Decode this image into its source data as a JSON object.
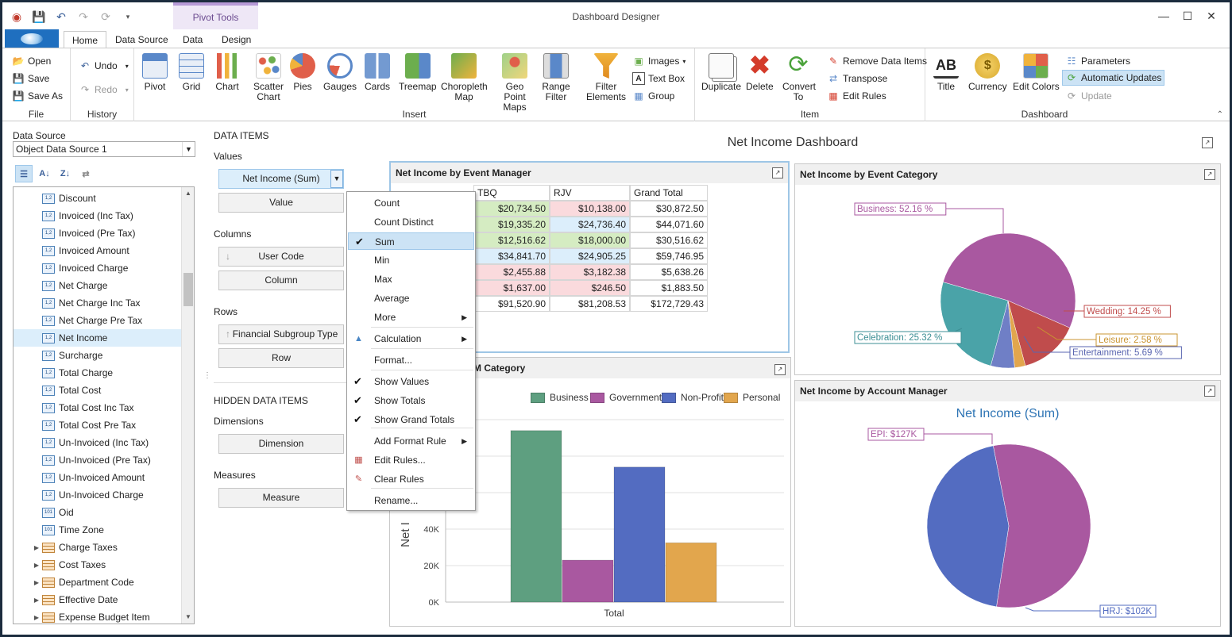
{
  "window": {
    "title": "Dashboard Designer",
    "context_group": "Pivot Tools"
  },
  "tabs": [
    "Home",
    "Data Source",
    "Data",
    "Design"
  ],
  "ribbon": {
    "file": {
      "label": "File",
      "open": "Open",
      "save": "Save",
      "save_as": "Save As"
    },
    "history": {
      "label": "History",
      "undo": "Undo",
      "redo": "Redo"
    },
    "insert": {
      "label": "Insert",
      "items": [
        "Pivot",
        "Grid",
        "Chart",
        "Scatter Chart",
        "Pies",
        "Gauges",
        "Cards",
        "Treemap",
        "Choropleth Map",
        "Geo Point Maps",
        "Range Filter",
        "Filter Elements"
      ],
      "images": "Images",
      "text_box": "Text Box",
      "group": "Group"
    },
    "item": {
      "label": "Item",
      "duplicate": "Duplicate",
      "delete": "Delete",
      "convert_to": "Convert To",
      "remove_data_items": "Remove Data Items",
      "transpose": "Transpose",
      "edit_rules": "Edit Rules"
    },
    "dashboard": {
      "label": "Dashboard",
      "title": "Title",
      "currency": "Currency",
      "edit_colors": "Edit Colors",
      "parameters": "Parameters",
      "automatic_updates": "Automatic Updates",
      "update": "Update"
    }
  },
  "data_source": {
    "label": "Data Source",
    "selected": "Object Data Source 1",
    "fields": [
      {
        "name": "Discount",
        "type": "num"
      },
      {
        "name": "Invoiced (Inc Tax)",
        "type": "num"
      },
      {
        "name": "Invoiced (Pre Tax)",
        "type": "num"
      },
      {
        "name": "Invoiced Amount",
        "type": "num"
      },
      {
        "name": "Invoiced Charge",
        "type": "num"
      },
      {
        "name": "Net Charge",
        "type": "num"
      },
      {
        "name": "Net Charge Inc Tax",
        "type": "num"
      },
      {
        "name": "Net Charge Pre Tax",
        "type": "num"
      },
      {
        "name": "Net Income",
        "type": "num"
      },
      {
        "name": "Surcharge",
        "type": "num"
      },
      {
        "name": "Total Charge",
        "type": "num"
      },
      {
        "name": "Total Cost",
        "type": "num"
      },
      {
        "name": "Total Cost Inc Tax",
        "type": "num"
      },
      {
        "name": "Total Cost Pre Tax",
        "type": "num"
      },
      {
        "name": "Un-Invoiced (Inc Tax)",
        "type": "num"
      },
      {
        "name": "Un-Invoiced (Pre Tax)",
        "type": "num"
      },
      {
        "name": "Un-Invoiced Amount",
        "type": "num"
      },
      {
        "name": "Un-Invoiced Charge",
        "type": "num"
      },
      {
        "name": "Oid",
        "type": "int"
      },
      {
        "name": "Time Zone",
        "type": "int"
      },
      {
        "name": "Charge Taxes",
        "type": "table"
      },
      {
        "name": "Cost Taxes",
        "type": "table"
      },
      {
        "name": "Department Code",
        "type": "table"
      },
      {
        "name": "Effective Date",
        "type": "table"
      },
      {
        "name": "Expense Budget Item",
        "type": "table"
      }
    ],
    "selected_field": "Net Income"
  },
  "data_items": {
    "title": "DATA ITEMS",
    "values_label": "Values",
    "value_item": "Net Income (Sum)",
    "value_placeholder": "Value",
    "columns_label": "Columns",
    "column_item": "User Code",
    "column_placeholder": "Column",
    "rows_label": "Rows",
    "row_item": "Financial Subgroup Type",
    "row_placeholder": "Row",
    "hidden_title": "HIDDEN DATA ITEMS",
    "dimensions_label": "Dimensions",
    "dimension_placeholder": "Dimension",
    "measures_label": "Measures",
    "measure_placeholder": "Measure"
  },
  "context_menu": {
    "items": [
      "Count",
      "Count Distinct",
      "Sum",
      "Min",
      "Max",
      "Average",
      "More",
      "Calculation",
      "Format...",
      "Show Values",
      "Show Totals",
      "Show Grand Totals",
      "Add Format Rule",
      "Edit Rules...",
      "Clear Rules",
      "Rename..."
    ],
    "selected": "Sum"
  },
  "dashboard": {
    "title": "Net Income Dashboard",
    "pivot": {
      "title": "Net Income by Event Manager",
      "columns": [
        "TBQ",
        "RJV",
        "Grand Total"
      ],
      "rows": [
        [
          "$20,734.50",
          "$10,138.00",
          "$30,872.50"
        ],
        [
          "$19,335.20",
          "$24,736.40",
          "$44,071.60"
        ],
        [
          "$12,516.62",
          "$18,000.00",
          "$30,516.62"
        ],
        [
          "$34,841.70",
          "$24,905.25",
          "$59,746.95"
        ],
        [
          "$2,455.88",
          "$3,182.38",
          "$5,638.26"
        ],
        [
          "$1,637.00",
          "$246.50",
          "$1,883.50"
        ],
        [
          "$91,520.90",
          "$81,208.53",
          "$172,729.43"
        ]
      ],
      "cell_colors": [
        [
          "#d5ecc2",
          "#fadadd",
          ""
        ],
        [
          "#d5ecc2",
          "#dceefb",
          ""
        ],
        [
          "#d5ecc2",
          "#d5ecc2",
          ""
        ],
        [
          "#dceefb",
          "#dceefb",
          ""
        ],
        [
          "#fadadd",
          "#fadadd",
          ""
        ],
        [
          "#fadadd",
          "#fadadd",
          ""
        ],
        [
          "",
          "",
          ""
        ]
      ]
    },
    "bar": {
      "title_fragment": "M Category",
      "axis_title": "Net I",
      "x_label": "Total",
      "legend": [
        "Business",
        "Government",
        "Non-Profit",
        "Personal"
      ],
      "colors": {
        "Business": "#5e9f80",
        "Government": "#a958a0",
        "Non-Profit": "#536cc1",
        "Personal": "#e2a64d"
      }
    },
    "pie_category": {
      "title": "Net Income by Event Category",
      "labels": [
        "Business: 52.16 %",
        "Wedding: 14.25 %",
        "Leisure: 2.58 %",
        "Entertainment: 5.69 %",
        "Celebration: 25.32 %"
      ]
    },
    "pie_account": {
      "title": "Net Income by Account Manager",
      "chart_title": "Net Income (Sum)",
      "labels": [
        "EPI: $127K",
        "HRJ: $102K"
      ]
    }
  },
  "chart_data": [
    {
      "type": "bar",
      "categories": [
        "Total"
      ],
      "series": [
        {
          "name": "Business",
          "values": [
            94000
          ]
        },
        {
          "name": "Government",
          "values": [
            23000
          ]
        },
        {
          "name": "Non-Profit",
          "values": [
            74000
          ]
        },
        {
          "name": "Personal",
          "values": [
            32500
          ]
        }
      ],
      "yticks": [
        "0K",
        "20K",
        "40K"
      ],
      "ylim": [
        0,
        100000
      ],
      "grid": true,
      "legend_position": "top"
    },
    {
      "type": "pie",
      "title": "Net Income by Event Category",
      "categories": [
        "Business",
        "Wedding",
        "Leisure",
        "Entertainment",
        "Celebration"
      ],
      "values": [
        52.16,
        14.25,
        2.58,
        5.69,
        25.32
      ],
      "colors": [
        "#a958a0",
        "#c04c4c",
        "#e2a64d",
        "#6f7fc6",
        "#4aa3a8"
      ]
    },
    {
      "type": "pie",
      "title": "Net Income (Sum)",
      "categories": [
        "EPI",
        "HRJ"
      ],
      "values": [
        127,
        102
      ],
      "colors": [
        "#a958a0",
        "#536cc1"
      ]
    }
  ]
}
